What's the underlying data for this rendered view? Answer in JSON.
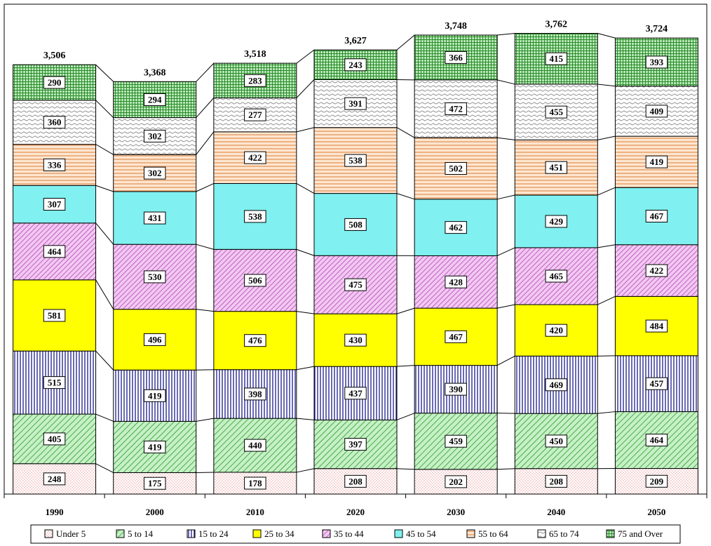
{
  "chart_data": {
    "type": "bar",
    "stacked": true,
    "categories": [
      "1990",
      "2000",
      "2010",
      "2020",
      "2030",
      "2040",
      "2050"
    ],
    "totals": [
      "3,506",
      "3,368",
      "3,518",
      "3,627",
      "3,748",
      "3,762",
      "3,724"
    ],
    "series": [
      {
        "name": "Under 5",
        "values": [
          248,
          175,
          178,
          208,
          202,
          208,
          209
        ],
        "color": "#ffffff",
        "pattern": "dots"
      },
      {
        "name": "5 to 14",
        "values": [
          405,
          419,
          440,
          397,
          459,
          450,
          464
        ],
        "color": "#c6f0c6",
        "pattern": "diag-right"
      },
      {
        "name": "15 to 24",
        "values": [
          515,
          419,
          398,
          437,
          390,
          469,
          457
        ],
        "color": "#ffffff",
        "pattern": "vertical"
      },
      {
        "name": "25 to 34",
        "values": [
          581,
          496,
          476,
          430,
          467,
          420,
          484
        ],
        "color": "#ffff00",
        "pattern": "solid"
      },
      {
        "name": "35 to 44",
        "values": [
          464,
          530,
          506,
          475,
          428,
          465,
          422
        ],
        "color": "#f2c8f2",
        "pattern": "diag-right-dense"
      },
      {
        "name": "45 to 54",
        "values": [
          307,
          431,
          538,
          508,
          462,
          429,
          467
        ],
        "color": "#80f0f0",
        "pattern": "solid"
      },
      {
        "name": "55 to 64",
        "values": [
          336,
          302,
          422,
          538,
          502,
          451,
          419
        ],
        "color": "#fde6d0",
        "pattern": "horizontal"
      },
      {
        "name": "65 to 74",
        "values": [
          360,
          302,
          277,
          391,
          472,
          455,
          409
        ],
        "color": "#ffffff",
        "pattern": "wave"
      },
      {
        "name": "75 and Over",
        "values": [
          290,
          294,
          283,
          243,
          366,
          415,
          393
        ],
        "color": "#b8e8b8",
        "pattern": "grid"
      }
    ],
    "ylim": [
      0,
      4000
    ],
    "grid": false,
    "legend_position": "bottom"
  }
}
